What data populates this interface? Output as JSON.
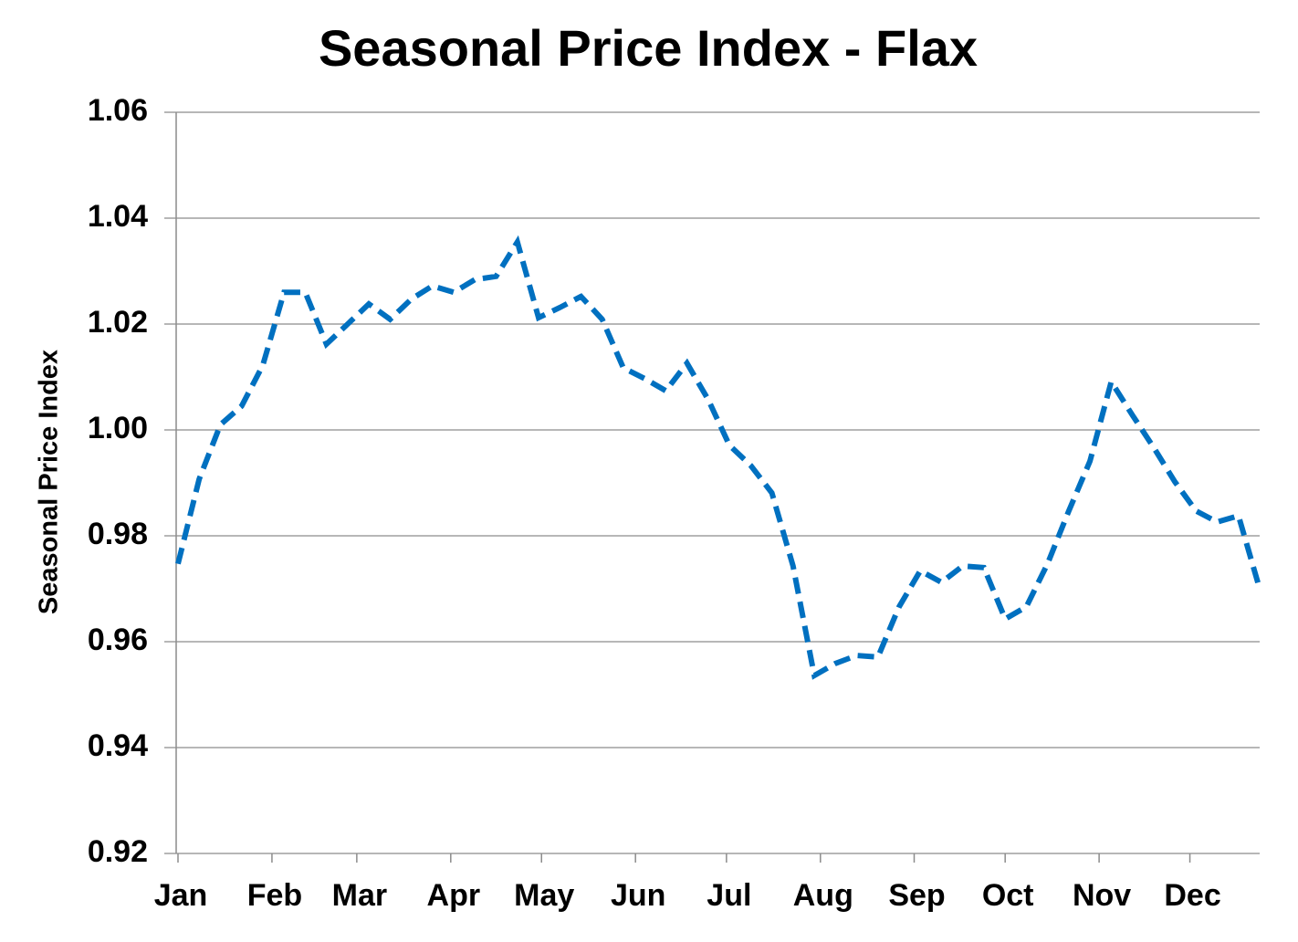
{
  "chart_data": {
    "type": "line",
    "title": "Seasonal Price Index - Flax",
    "y_label": "Seasonal Price Index",
    "x": [
      0,
      1,
      2,
      3,
      4,
      5,
      6,
      7,
      8,
      9,
      10,
      11,
      12,
      13,
      14,
      15,
      16,
      17,
      18,
      19,
      20,
      21,
      22,
      23,
      24,
      25,
      26,
      27,
      28,
      29,
      30,
      31,
      32,
      33,
      34,
      35,
      36,
      37,
      38,
      39,
      40,
      41,
      42,
      43,
      44,
      45,
      46,
      47,
      48,
      49,
      50,
      51
    ],
    "values": [
      0.9747,
      0.9907,
      1.001,
      1.0045,
      1.0122,
      1.026,
      1.026,
      1.0162,
      1.02,
      1.0238,
      1.0209,
      1.0247,
      1.0272,
      1.026,
      1.0284,
      1.029,
      1.0355,
      1.0212,
      1.0231,
      1.0252,
      1.0209,
      1.0117,
      1.0097,
      1.0074,
      1.0126,
      1.0057,
      0.9971,
      0.9933,
      0.9881,
      0.9743,
      0.9536,
      0.9559,
      0.9574,
      0.9571,
      0.9666,
      0.9734,
      0.9712,
      0.9743,
      0.974,
      0.9643,
      0.9666,
      0.9747,
      0.9847,
      0.9941,
      1.0091,
      1.0028,
      0.9967,
      0.9902,
      0.9847,
      0.9826,
      0.9838,
      0.97
    ],
    "color": "#0070c0",
    "line_style": "dashed",
    "xlim": [
      0,
      51
    ],
    "xticks": [
      {
        "value": 0,
        "label": "Jan"
      },
      {
        "value": 4.43,
        "label": "Feb"
      },
      {
        "value": 8.43,
        "label": "Mar"
      },
      {
        "value": 12.86,
        "label": "Apr"
      },
      {
        "value": 17.14,
        "label": "May"
      },
      {
        "value": 21.57,
        "label": "Jun"
      },
      {
        "value": 25.86,
        "label": "Jul"
      },
      {
        "value": 30.29,
        "label": "Aug"
      },
      {
        "value": 34.71,
        "label": "Sep"
      },
      {
        "value": 39,
        "label": "Oct"
      },
      {
        "value": 43.43,
        "label": "Nov"
      },
      {
        "value": 47.71,
        "label": "Dec"
      }
    ],
    "ylim": [
      0.92,
      1.06
    ],
    "yticks": [
      0.92,
      0.94,
      0.96,
      0.98,
      {
        "value": 1.0,
        "label": "1.00"
      },
      1.02,
      1.04,
      1.06
    ],
    "grid": true
  }
}
